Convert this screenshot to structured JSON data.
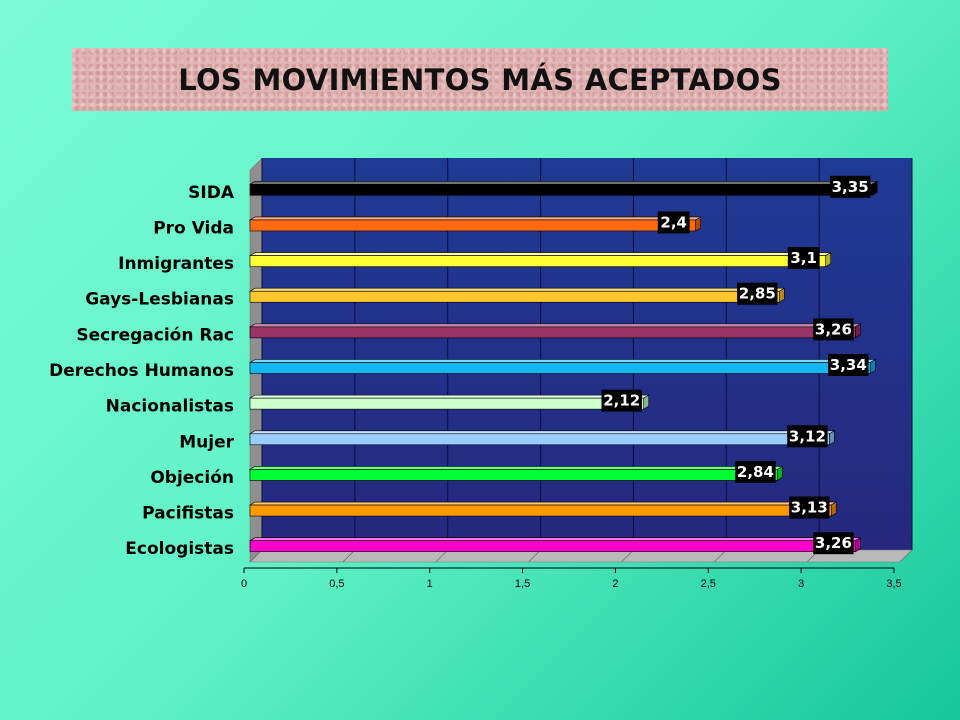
{
  "chart_data": {
    "type": "bar",
    "orientation": "horizontal",
    "title": "LOS MOVIMIENTOS MÁS ACEPTADOS",
    "categories": [
      "SIDA",
      "Pro Vida",
      "Inmigrantes",
      "Gays-Lesbianas",
      "Secregación Rac",
      "Derechos Humanos",
      "Nacionalistas",
      "Mujer",
      "Objeción",
      "Pacifistas",
      "Ecologistas"
    ],
    "values": [
      3.35,
      2.4,
      3.1,
      2.85,
      3.26,
      3.34,
      2.12,
      3.12,
      2.84,
      3.13,
      3.26
    ],
    "value_labels": [
      "3,35",
      "2,4",
      "3,1",
      "2,85",
      "3,26",
      "3,34",
      "2,12",
      "3,12",
      "2,84",
      "3,13",
      "3,26"
    ],
    "bar_colors": [
      "#000000",
      "#ff6a13",
      "#ffff33",
      "#ffc72e",
      "#993366",
      "#13b7f4",
      "#ccffcc",
      "#99ccff",
      "#00ff33",
      "#ff9900",
      "#ff00cc"
    ],
    "x_ticks": [
      "0",
      "0,5",
      "1",
      "1,5",
      "2",
      "2,5",
      "3",
      "3,5"
    ],
    "xlim": [
      0,
      3.5
    ],
    "grid": true,
    "plot_background": "#1b2f86",
    "legend": "none"
  }
}
